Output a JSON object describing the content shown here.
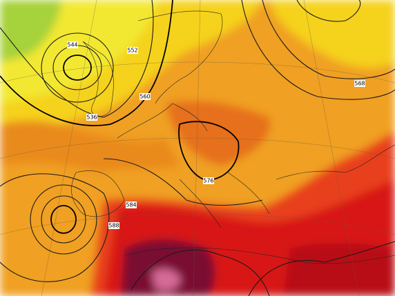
{
  "map": {
    "contour_labels": [
      {
        "text": "544"
      },
      {
        "text": "552"
      },
      {
        "text": "536"
      },
      {
        "text": "568"
      },
      {
        "text": "576"
      },
      {
        "text": "584"
      },
      {
        "text": "560"
      },
      {
        "text": "588"
      }
    ]
  }
}
